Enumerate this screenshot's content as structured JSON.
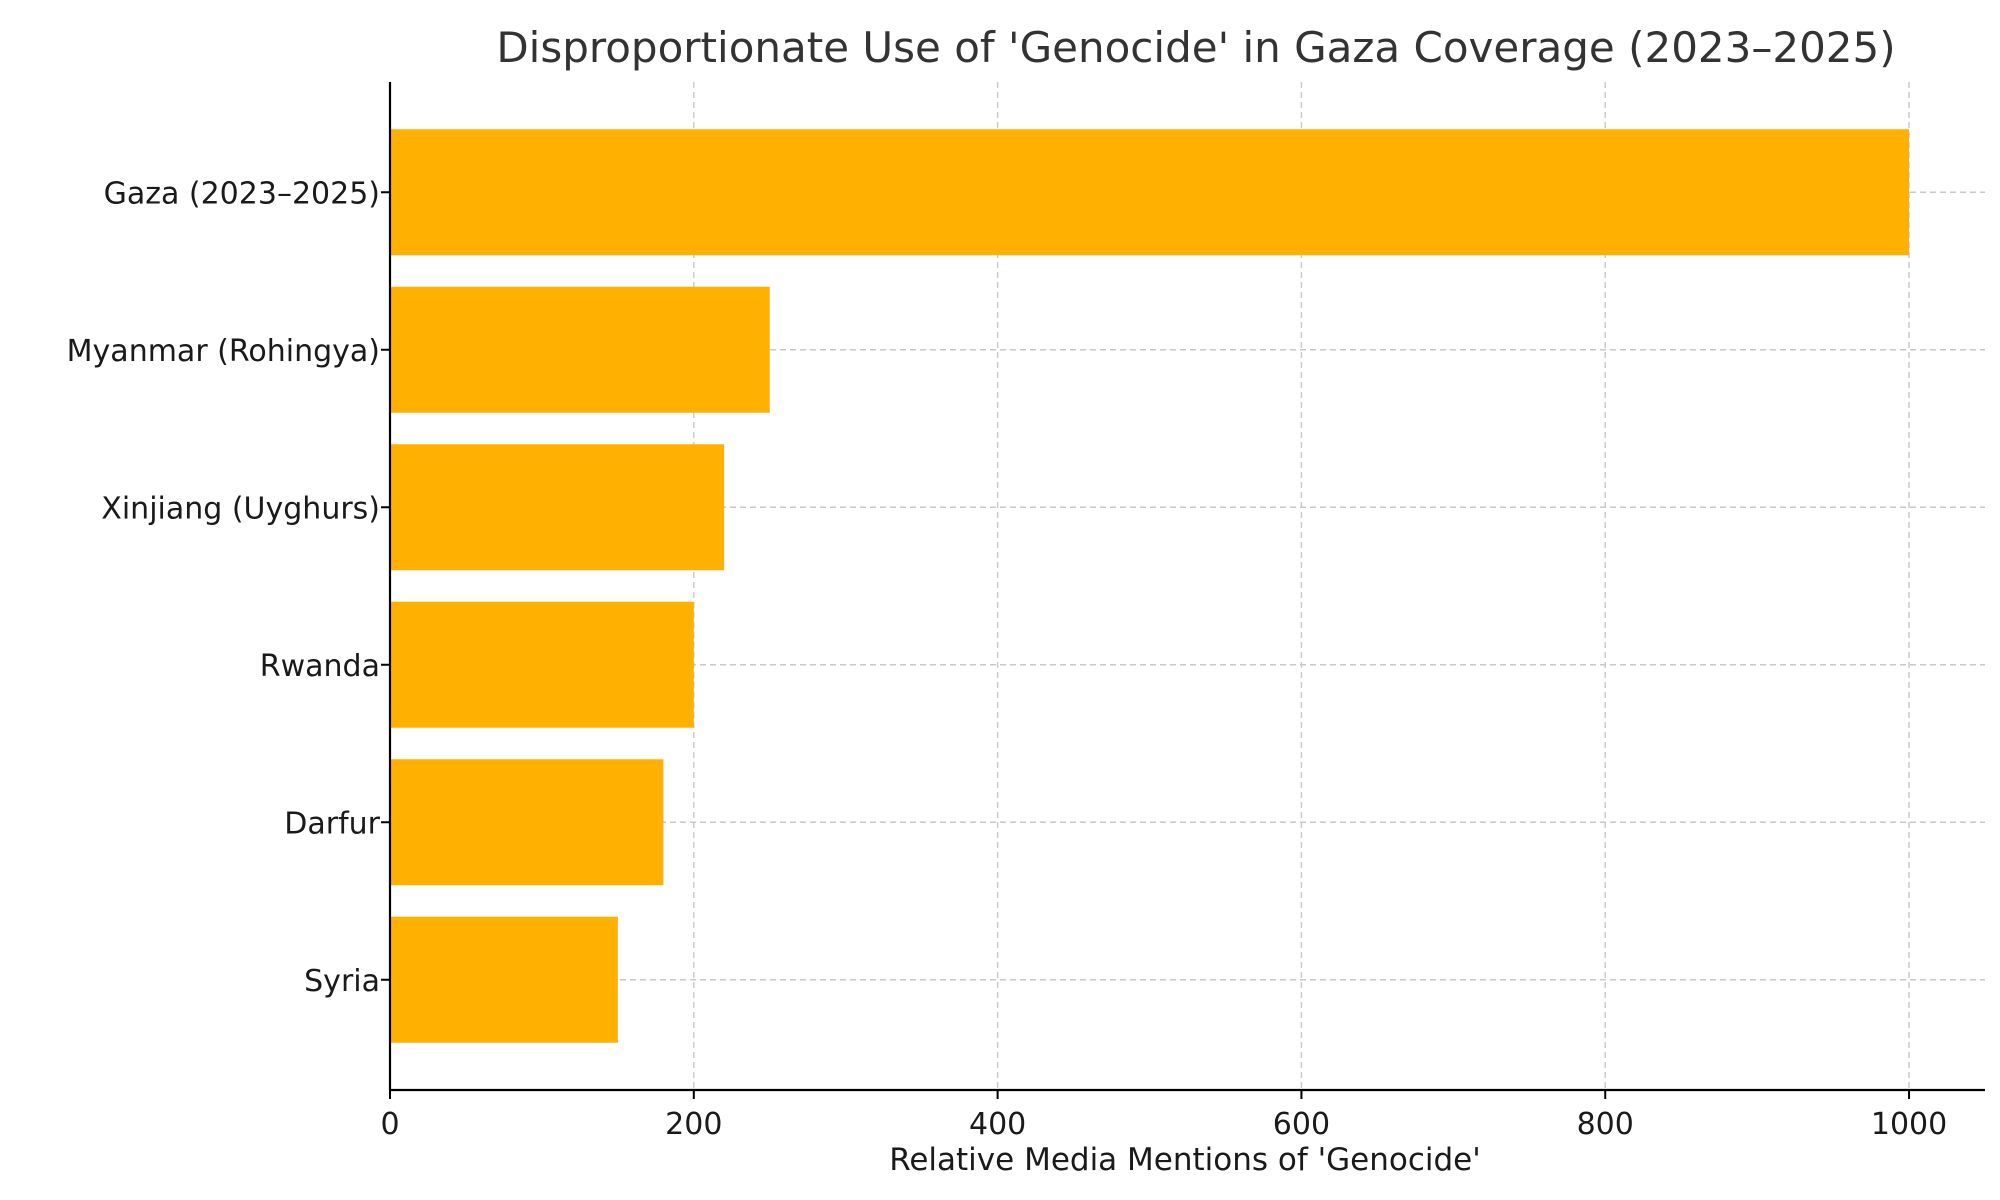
{
  "chart_data": {
    "type": "bar",
    "orientation": "horizontal",
    "title": "Disproportionate Use of 'Genocide' in Gaza Coverage (2023–2025)",
    "xlabel": "Relative Media Mentions of 'Genocide'",
    "ylabel": "",
    "categories": [
      "Gaza (2023–2025)",
      "Myanmar (Rohingya)",
      "Xinjiang (Uyghurs)",
      "Rwanda",
      "Darfur",
      "Syria"
    ],
    "values": [
      1000,
      250,
      220,
      200,
      180,
      150
    ],
    "xlim": [
      0,
      1050
    ],
    "xticks": [
      0,
      200,
      400,
      600,
      800,
      1000
    ],
    "grid": true,
    "bar_color": "#FFB000"
  }
}
